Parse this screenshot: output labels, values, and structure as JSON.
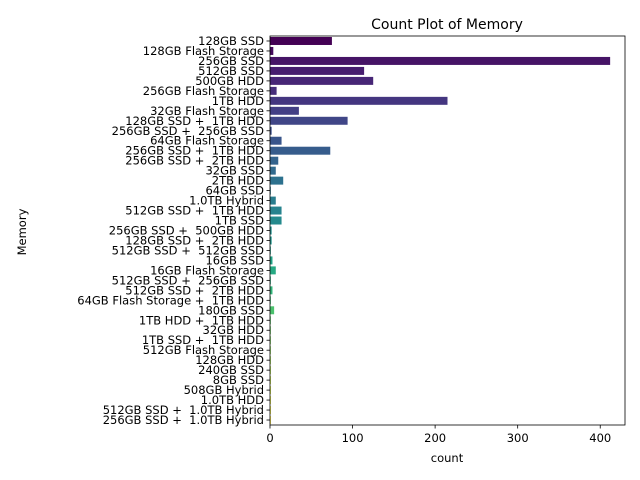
{
  "chart_data": {
    "type": "bar",
    "orientation": "horizontal",
    "title": "Count Plot of Memory",
    "xlabel": "count",
    "ylabel": "Memory",
    "xlim": [
      0,
      430
    ],
    "xticks": [
      0,
      100,
      200,
      300,
      400
    ],
    "grid": false,
    "legend": "none",
    "palette": "viridis",
    "colors": [
      "#440154",
      "#482173",
      "#433e85",
      "#38588c",
      "#2d708e",
      "#25858e",
      "#1e9b8a",
      "#2ab07f",
      "#52c569",
      "#86d549",
      "#c2df23",
      "#fde725"
    ],
    "categories": [
      "128GB SSD",
      "128GB Flash Storage",
      "256GB SSD",
      "512GB SSD",
      "500GB HDD",
      "256GB Flash Storage",
      "1TB HDD",
      "32GB Flash Storage",
      "128GB SSD +  1TB HDD",
      "256GB SSD +  256GB SSD",
      "64GB Flash Storage",
      "256GB SSD +  1TB HDD",
      "256GB SSD +  2TB HDD",
      "32GB SSD",
      "2TB HDD",
      "64GB SSD",
      "1.0TB Hybrid",
      "512GB SSD +  1TB HDD",
      "1TB SSD",
      "256GB SSD +  500GB HDD",
      "128GB SSD +  2TB HDD",
      "512GB SSD +  512GB SSD",
      "16GB SSD",
      "16GB Flash Storage",
      "512GB SSD +  256GB SSD",
      "512GB SSD +  2TB HDD",
      "64GB Flash Storage +  1TB HDD",
      "180GB SSD",
      "1TB HDD +  1TB HDD",
      "32GB HDD",
      "1TB SSD +  1TB HDD",
      "512GB Flash Storage",
      "128GB HDD",
      "240GB SSD",
      "8GB SSD",
      "508GB Hybrid",
      "1.0TB HDD",
      "512GB SSD +  1.0TB Hybrid",
      "256GB SSD +  1.0TB Hybrid"
    ],
    "values": [
      75,
      4,
      412,
      114,
      125,
      8,
      215,
      35,
      94,
      2,
      14,
      73,
      10,
      7,
      16,
      1,
      7,
      14,
      14,
      2,
      2,
      1,
      3,
      7,
      1,
      3,
      1,
      5,
      1,
      1,
      1,
      1,
      1,
      1,
      1,
      1,
      1,
      1,
      1
    ]
  }
}
